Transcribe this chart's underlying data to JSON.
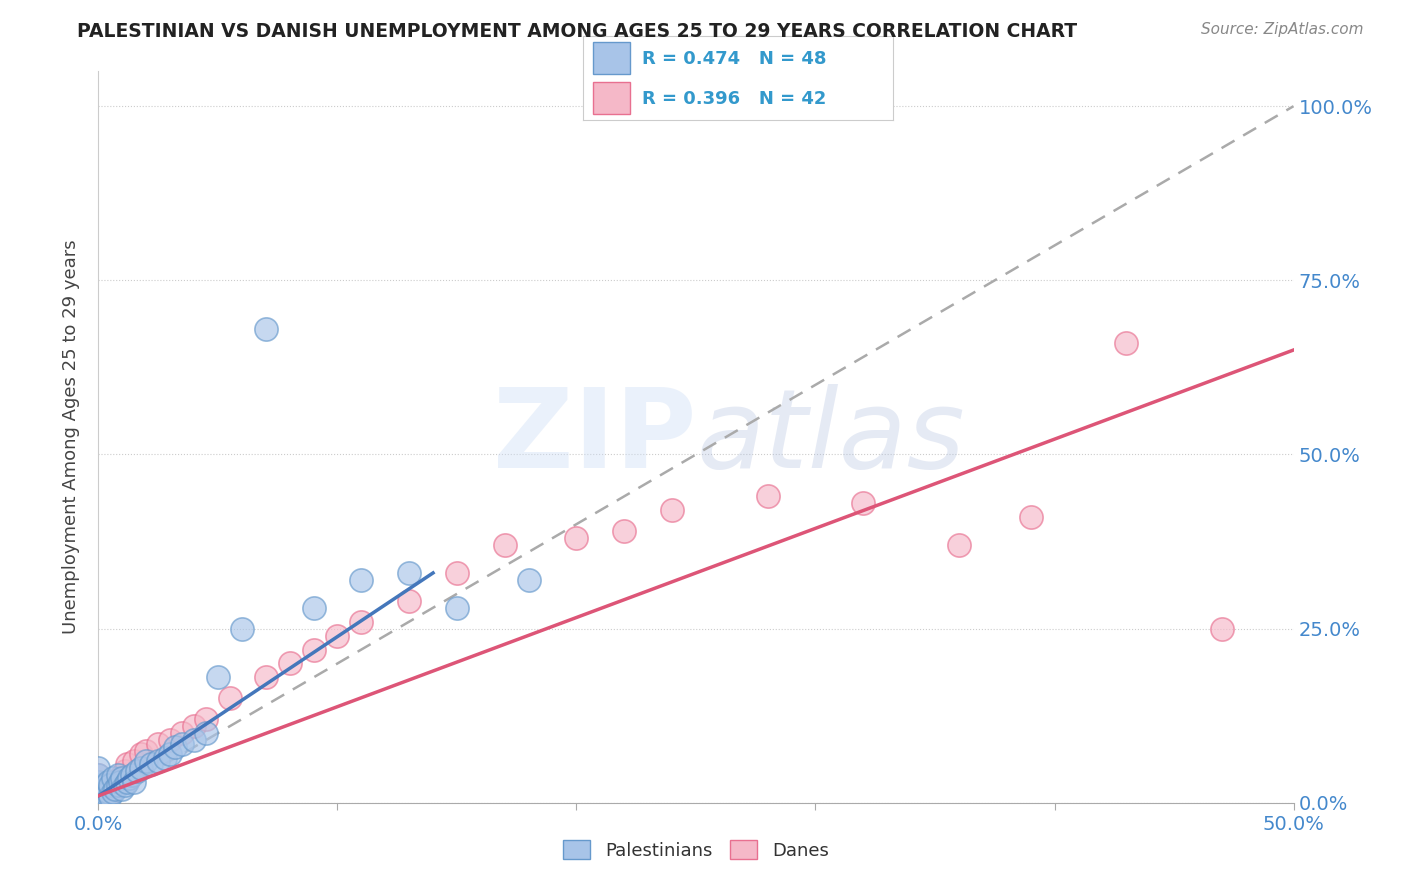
{
  "title": "PALESTINIAN VS DANISH UNEMPLOYMENT AMONG AGES 25 TO 29 YEARS CORRELATION CHART",
  "source": "Source: ZipAtlas.com",
  "ylabel": "Unemployment Among Ages 25 to 29 years",
  "blue_color": "#a8c4e8",
  "blue_edge": "#6699cc",
  "pink_color": "#f5b8c8",
  "pink_edge": "#e87090",
  "line_blue": "#4477bb",
  "line_pink": "#dd5577",
  "line_dash": "#aaaaaa",
  "xlim": [
    0.0,
    0.5
  ],
  "ylim": [
    0.0,
    1.05
  ],
  "pal_x": [
    0.0,
    0.0,
    0.0,
    0.0,
    0.0,
    0.0,
    0.0,
    0.0,
    0.002,
    0.002,
    0.003,
    0.003,
    0.004,
    0.004,
    0.005,
    0.005,
    0.006,
    0.006,
    0.007,
    0.008,
    0.008,
    0.009,
    0.01,
    0.01,
    0.011,
    0.012,
    0.013,
    0.014,
    0.015,
    0.016,
    0.018,
    0.02,
    0.022,
    0.025,
    0.028,
    0.03,
    0.032,
    0.035,
    0.04,
    0.045,
    0.05,
    0.06,
    0.07,
    0.09,
    0.11,
    0.13,
    0.15,
    0.18
  ],
  "pal_y": [
    0.005,
    0.01,
    0.015,
    0.02,
    0.025,
    0.03,
    0.04,
    0.05,
    0.008,
    0.018,
    0.012,
    0.025,
    0.015,
    0.03,
    0.01,
    0.025,
    0.015,
    0.035,
    0.02,
    0.025,
    0.04,
    0.03,
    0.02,
    0.035,
    0.025,
    0.03,
    0.035,
    0.04,
    0.03,
    0.045,
    0.05,
    0.06,
    0.055,
    0.06,
    0.065,
    0.07,
    0.08,
    0.085,
    0.09,
    0.1,
    0.18,
    0.25,
    0.68,
    0.28,
    0.32,
    0.33,
    0.28,
    0.32
  ],
  "dan_x": [
    0.0,
    0.0,
    0.0,
    0.0,
    0.0,
    0.002,
    0.003,
    0.004,
    0.005,
    0.006,
    0.007,
    0.008,
    0.009,
    0.01,
    0.011,
    0.012,
    0.015,
    0.018,
    0.02,
    0.025,
    0.03,
    0.035,
    0.04,
    0.045,
    0.055,
    0.07,
    0.08,
    0.09,
    0.1,
    0.11,
    0.13,
    0.15,
    0.17,
    0.2,
    0.22,
    0.24,
    0.28,
    0.32,
    0.36,
    0.39,
    0.43,
    0.47
  ],
  "dan_y": [
    0.008,
    0.015,
    0.02,
    0.03,
    0.04,
    0.01,
    0.018,
    0.025,
    0.015,
    0.02,
    0.025,
    0.03,
    0.035,
    0.04,
    0.045,
    0.055,
    0.06,
    0.07,
    0.075,
    0.085,
    0.09,
    0.1,
    0.11,
    0.12,
    0.15,
    0.18,
    0.2,
    0.22,
    0.24,
    0.26,
    0.29,
    0.33,
    0.37,
    0.38,
    0.39,
    0.42,
    0.44,
    0.43,
    0.37,
    0.41,
    0.66,
    0.25
  ],
  "blue_line_x": [
    0.0,
    0.14
  ],
  "blue_line_y": [
    0.01,
    0.33
  ],
  "pink_line_x": [
    0.0,
    0.5
  ],
  "pink_line_y": [
    0.01,
    0.65
  ],
  "dash_line_x": [
    0.0,
    0.5
  ],
  "dash_line_y": [
    0.0,
    1.0
  ]
}
